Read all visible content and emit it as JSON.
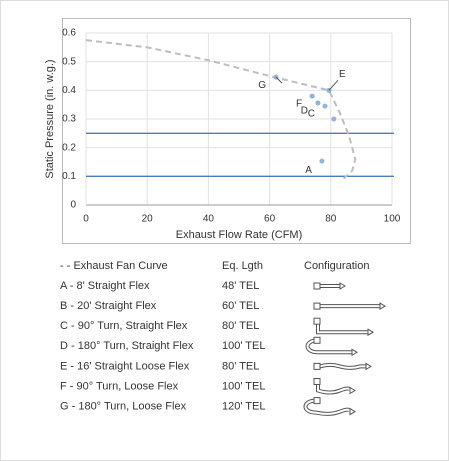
{
  "chart_data": {
    "type": "scatter",
    "xlabel": "Exhaust Flow Rate (CFM)",
    "ylabel": "Static Pressure (in. w.g.)",
    "xlim": [
      0,
      100
    ],
    "ylim": [
      0,
      0.6
    ],
    "xticks": [
      0,
      20,
      40,
      60,
      80,
      100
    ],
    "yticks": [
      0,
      0.1,
      0.2,
      0.3,
      0.4,
      0.5,
      0.6
    ],
    "grid": true,
    "fan_curve": {
      "color": "#bdbdbd",
      "x": [
        0,
        20,
        40,
        60,
        79.4,
        83,
        86,
        88,
        87,
        84
      ],
      "values": [
        0.575,
        0.55,
        0.505,
        0.45,
        0.4,
        0.32,
        0.24,
        0.16,
        0.12,
        0.09
      ]
    },
    "points": {
      "color": "#8fb3dc",
      "labels": [
        "A",
        null,
        "C",
        "D",
        "E",
        "F",
        "G"
      ],
      "x": [
        77.1,
        81,
        78.1,
        75.8,
        79.4,
        73.9,
        62.1
      ],
      "values": [
        0.153,
        0.3,
        0.345,
        0.356,
        0.4,
        0.38,
        0.446
      ]
    },
    "system_lines": {
      "color": "#4a7ebb",
      "values": [
        0.25,
        0.1
      ]
    }
  },
  "table": {
    "headers": [
      "Eq. Lgth",
      "Configuration"
    ],
    "fan_curve_label": "- - Exhaust Fan Curve",
    "rows": [
      [
        "A - 8' Straight Flex",
        "48' TEL"
      ],
      [
        "B - 20' Straight Flex",
        "60' TEL"
      ],
      [
        "C - 90° Turn, Straight Flex",
        "80' TEL"
      ],
      [
        "D - 180° Turn, Straight Flex",
        "100' TEL"
      ],
      [
        "E - 16' Straight Loose Flex",
        "80' TEL"
      ],
      [
        "F - 90° Turn, Loose Flex",
        "100' TEL"
      ],
      [
        "G - 180° Turn, Loose Flex",
        "120' TEL"
      ]
    ]
  }
}
